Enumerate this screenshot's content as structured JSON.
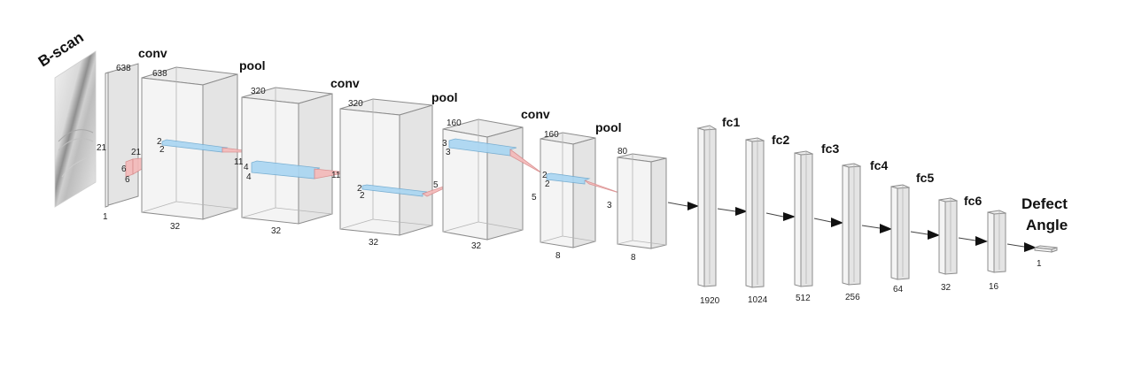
{
  "input": {
    "title": "B-scan",
    "depth": "1",
    "dim1": "638"
  },
  "stages": {
    "conv1": {
      "title": "conv",
      "height": "638",
      "width": "32",
      "kernel_in": "21",
      "kernel_in2": "21",
      "k_a": "6",
      "k_b": "6",
      "k_out_a": "2",
      "k_out_b": "2"
    },
    "pool1": {
      "title": "pool",
      "height": "320",
      "width": "32",
      "k_in": "11",
      "k_a": "4",
      "k_b": "4",
      "k_out": "11"
    },
    "conv2": {
      "title": "conv",
      "height": "320",
      "width": "32",
      "k_a": "2",
      "k_b": "2",
      "k_out": "5"
    },
    "pool2": {
      "title": "pool",
      "height": "160",
      "width": "32",
      "k_a": "3",
      "k_b": "3"
    },
    "conv3": {
      "title": "conv",
      "height": "160",
      "width": "8",
      "k_in": "5",
      "k_a": "2",
      "k_b": "2",
      "k_out": "3"
    },
    "pool3": {
      "title": "pool",
      "height": "80",
      "width": "8"
    }
  },
  "fc_layers": [
    {
      "title": "fc1",
      "units": "1920"
    },
    {
      "title": "fc2",
      "units": "1024"
    },
    {
      "title": "fc3",
      "units": "512"
    },
    {
      "title": "fc4",
      "units": "256"
    },
    {
      "title": "fc5",
      "units": "64"
    },
    {
      "title": "fc6",
      "units": "32"
    },
    {
      "title": "",
      "units": "16"
    }
  ],
  "output": {
    "title_line1": "Defect",
    "title_line2": "Angle",
    "units": "1"
  }
}
